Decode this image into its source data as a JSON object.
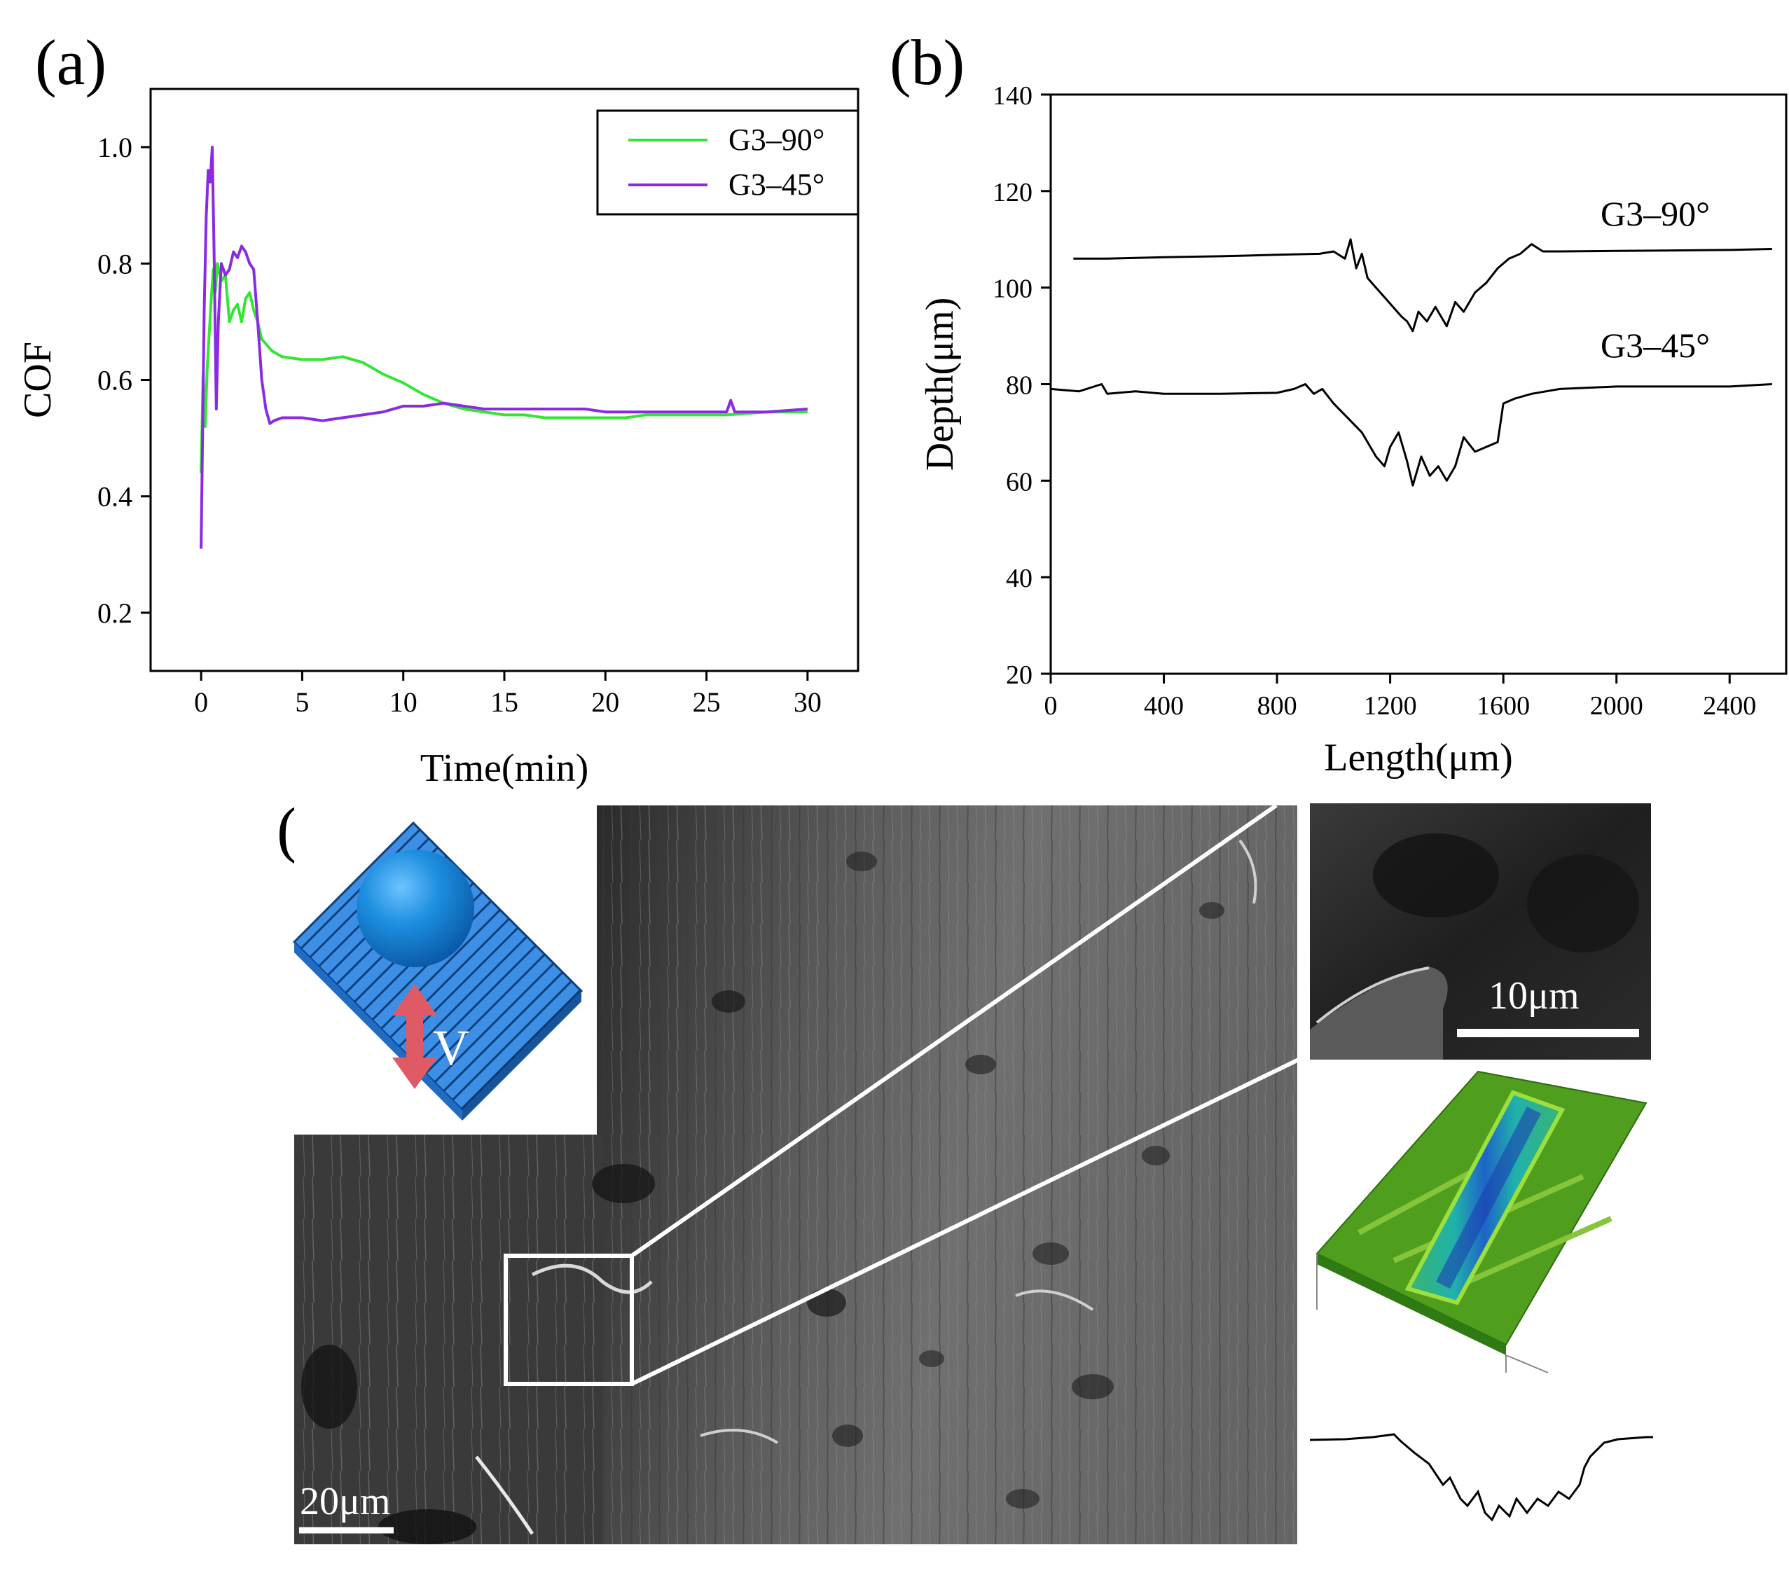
{
  "panels": {
    "a": "(a)",
    "b": "(b)",
    "c": "(c)"
  },
  "chart_data": [
    {
      "id": "a",
      "type": "line",
      "title": "",
      "xlabel": "Time(min)",
      "ylabel": "COF",
      "xlim": [
        -2.5,
        32.5
      ],
      "ylim": [
        0.1,
        1.1
      ],
      "xticks": [
        0,
        5,
        10,
        15,
        20,
        25,
        30
      ],
      "yticks": [
        0.2,
        0.4,
        0.6,
        0.8,
        1.0
      ],
      "xtick_labels": [
        "0",
        "5",
        "10",
        "15",
        "20",
        "25",
        "30"
      ],
      "ytick_labels": [
        "0.2",
        "0.4",
        "0.6",
        "0.8",
        "1.0"
      ],
      "legend_position": "top-right",
      "series": [
        {
          "name": "G3–90°",
          "color": "#33e633",
          "x": [
            0,
            0.1,
            0.2,
            0.3,
            0.4,
            0.5,
            0.6,
            0.7,
            0.8,
            1.0,
            1.2,
            1.4,
            1.6,
            1.8,
            2.0,
            2.2,
            2.4,
            2.6,
            2.8,
            3.0,
            3.5,
            4,
            5,
            6,
            7,
            8,
            9,
            10,
            11,
            12,
            13,
            14,
            15,
            16,
            17,
            18,
            19,
            20,
            21,
            22,
            24,
            26,
            28,
            30
          ],
          "y": [
            0.44,
            0.61,
            0.52,
            0.62,
            0.68,
            0.74,
            0.79,
            0.75,
            0.8,
            0.77,
            0.78,
            0.7,
            0.72,
            0.73,
            0.7,
            0.74,
            0.75,
            0.72,
            0.7,
            0.67,
            0.65,
            0.64,
            0.635,
            0.635,
            0.64,
            0.63,
            0.61,
            0.595,
            0.575,
            0.56,
            0.55,
            0.545,
            0.54,
            0.54,
            0.535,
            0.535,
            0.535,
            0.535,
            0.535,
            0.54,
            0.54,
            0.54,
            0.545,
            0.545
          ]
        },
        {
          "name": "G3–45°",
          "color": "#8a2be2",
          "x": [
            0,
            0.05,
            0.15,
            0.25,
            0.35,
            0.45,
            0.55,
            0.65,
            0.75,
            0.85,
            1.0,
            1.2,
            1.4,
            1.6,
            1.8,
            2.0,
            2.2,
            2.4,
            2.6,
            2.8,
            3.0,
            3.2,
            3.4,
            3.6,
            4,
            5,
            6,
            7,
            8,
            9,
            10,
            11,
            12,
            13,
            14,
            15,
            16,
            17,
            18,
            19,
            20,
            21,
            22,
            24,
            26,
            26.2,
            26.4,
            28,
            30
          ],
          "y": [
            0.31,
            0.45,
            0.72,
            0.88,
            0.96,
            0.94,
            1.0,
            0.8,
            0.55,
            0.7,
            0.8,
            0.78,
            0.79,
            0.82,
            0.81,
            0.83,
            0.82,
            0.8,
            0.79,
            0.7,
            0.6,
            0.55,
            0.525,
            0.53,
            0.535,
            0.535,
            0.53,
            0.535,
            0.54,
            0.545,
            0.555,
            0.555,
            0.56,
            0.555,
            0.55,
            0.55,
            0.55,
            0.55,
            0.55,
            0.55,
            0.545,
            0.545,
            0.545,
            0.545,
            0.545,
            0.565,
            0.545,
            0.545,
            0.55
          ]
        }
      ]
    },
    {
      "id": "b",
      "type": "line",
      "title": "",
      "xlabel": "Length(μm)",
      "ylabel": "Depth(μm)",
      "xlim": [
        0,
        2600
      ],
      "ylim": [
        20,
        140
      ],
      "xticks": [
        0,
        400,
        800,
        1200,
        1600,
        2000,
        2400
      ],
      "yticks": [
        20,
        40,
        60,
        80,
        100,
        120,
        140
      ],
      "xtick_labels": [
        "0",
        "400",
        "800",
        "1200",
        "1600",
        "2000",
        "2400"
      ],
      "ytick_labels": [
        "20",
        "40",
        "60",
        "80",
        "100",
        "120",
        "140"
      ],
      "series": [
        {
          "name": "G3–90°",
          "color": "#000000",
          "x": [
            80,
            200,
            400,
            600,
            800,
            950,
            1000,
            1040,
            1060,
            1080,
            1100,
            1120,
            1150,
            1180,
            1210,
            1240,
            1260,
            1280,
            1300,
            1330,
            1360,
            1400,
            1430,
            1460,
            1500,
            1540,
            1580,
            1620,
            1660,
            1700,
            1740,
            1800,
            2000,
            2200,
            2400,
            2550
          ],
          "y": [
            106,
            106,
            106.3,
            106.5,
            106.8,
            107,
            107.5,
            106,
            110,
            104,
            107,
            102,
            100,
            98,
            96,
            94,
            93,
            91,
            95,
            93,
            96,
            92,
            97,
            95,
            99,
            101,
            104,
            106,
            107,
            109,
            107.5,
            107.5,
            107.6,
            107.7,
            107.8,
            108
          ]
        },
        {
          "name": "G3–45°",
          "color": "#000000",
          "x": [
            0,
            100,
            180,
            200,
            300,
            400,
            600,
            800,
            860,
            900,
            930,
            960,
            1000,
            1050,
            1100,
            1150,
            1180,
            1200,
            1230,
            1260,
            1280,
            1310,
            1340,
            1370,
            1400,
            1430,
            1460,
            1500,
            1540,
            1580,
            1600,
            1640,
            1700,
            1800,
            2000,
            2200,
            2400,
            2550
          ],
          "y": [
            79,
            78.5,
            80,
            78,
            78.5,
            78,
            78,
            78.2,
            79,
            80,
            78,
            79,
            76,
            73,
            70,
            65,
            63,
            67,
            70,
            64,
            59,
            65,
            61,
            63,
            60,
            63,
            69,
            66,
            67,
            68,
            76,
            77,
            78,
            79,
            79.5,
            79.5,
            79.5,
            80
          ]
        }
      ],
      "annotations": [
        "G3–90°",
        "G3–45°"
      ]
    }
  ],
  "panel_c": {
    "scale_main": "20μm",
    "scale_inset": "10μm",
    "velocity_label": "V"
  }
}
